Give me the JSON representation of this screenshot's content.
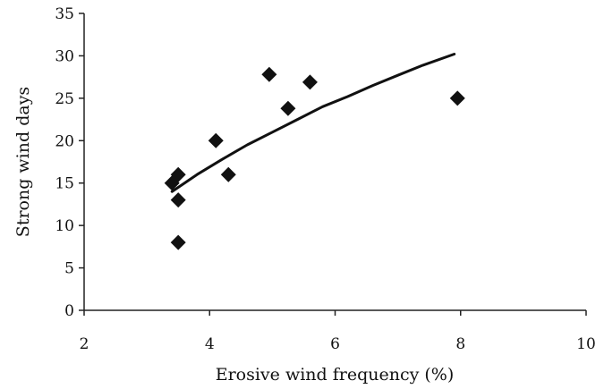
{
  "chart_data": {
    "type": "scatter",
    "title": "",
    "xlabel": "Erosive wind frequency (%)",
    "ylabel": "Strong wind days",
    "xlim": [
      2,
      10
    ],
    "ylim": [
      0,
      35
    ],
    "xticks": [
      2,
      4,
      6,
      8,
      10
    ],
    "yticks": [
      0,
      5,
      10,
      15,
      20,
      25,
      30,
      35
    ],
    "grid": false,
    "legend": "none",
    "marker": "diamond",
    "points": [
      {
        "x": 3.4,
        "y": 15
      },
      {
        "x": 3.5,
        "y": 16
      },
      {
        "x": 3.5,
        "y": 13
      },
      {
        "x": 3.5,
        "y": 8
      },
      {
        "x": 4.1,
        "y": 20
      },
      {
        "x": 4.3,
        "y": 16
      },
      {
        "x": 4.95,
        "y": 27.8
      },
      {
        "x": 5.25,
        "y": 23.8
      },
      {
        "x": 5.6,
        "y": 26.9
      },
      {
        "x": 7.95,
        "y": 25
      }
    ],
    "trend_line": {
      "shape": "logarithmic fit",
      "x": [
        3.4,
        3.8,
        4.2,
        4.6,
        5.0,
        5.4,
        5.8,
        6.2,
        6.6,
        7.0,
        7.4,
        7.9
      ],
      "y": [
        14.0,
        16.0,
        17.8,
        19.5,
        21.0,
        22.5,
        24.0,
        25.2,
        26.5,
        27.7,
        28.9,
        30.2
      ]
    },
    "colors": {
      "marker": "#111111",
      "line": "#111111",
      "axis": "#222222"
    }
  }
}
